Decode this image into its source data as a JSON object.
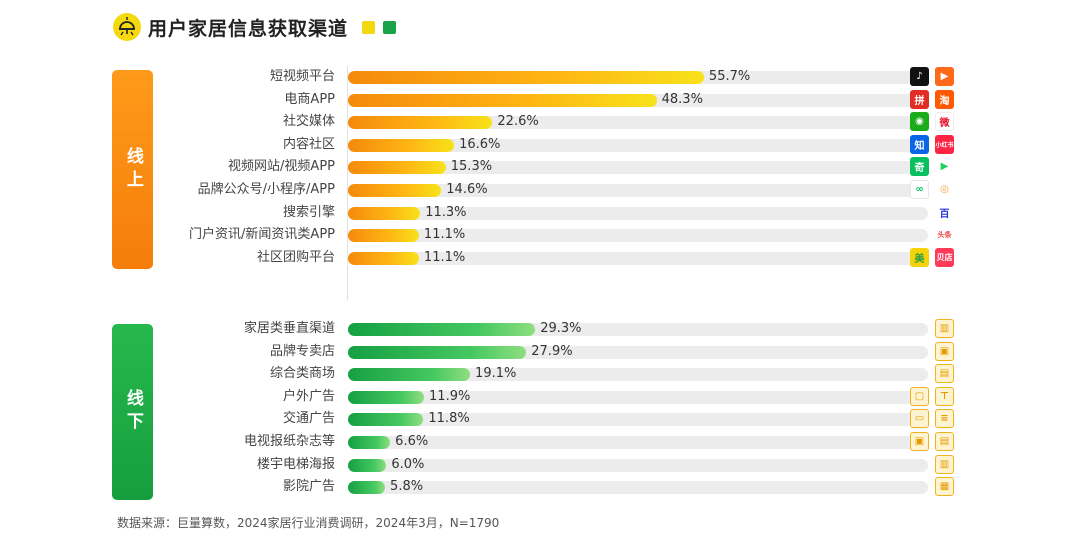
{
  "title": "用户家居信息获取渠道",
  "section_labels": {
    "online": "线上",
    "offline": "线下"
  },
  "footnote": "数据来源：巨量算数，2024家居行业消费调研，2024年3月，N=1790",
  "colors": {
    "online_start": "#f58a0c",
    "online_end": "#f7e21a",
    "offline_start": "#15a043",
    "offline_end": "#8fde7f",
    "track": "#ececec"
  },
  "chart_data": {
    "type": "bar",
    "orientation": "horizontal",
    "title": "用户家居信息获取渠道",
    "xlim": [
      0,
      100
    ],
    "unit": "%",
    "groups": [
      {
        "name": "线上",
        "categories": [
          "短视频平台",
          "电商APP",
          "社交媒体",
          "内容社区",
          "视频网站/视频APP",
          "品牌公众号/小程序/APP",
          "搜索引擎",
          "门户资讯/新闻资讯类APP",
          "社区团购平台"
        ],
        "values": [
          55.7,
          48.3,
          22.6,
          16.6,
          15.3,
          14.6,
          11.3,
          11.1,
          11.1
        ],
        "labels": [
          "55.7%",
          "48.3%",
          "22.6%",
          "16.6%",
          "15.3%",
          "14.6%",
          "11.3%",
          "11.1%",
          "11.1%"
        ],
        "icons": [
          [
            "tiktok-icon",
            "kuaishou-icon"
          ],
          [
            "pinduoduo-icon",
            "taobao-icon"
          ],
          [
            "wechat-icon",
            "weibo-icon"
          ],
          [
            "zhihu-icon",
            "xiaohongshu-icon"
          ],
          [
            "iqiyi-icon",
            "tencent-video-icon"
          ],
          [
            "mini-program-icon",
            "wechat-channels-icon"
          ],
          [
            "baidu-icon"
          ],
          [
            "toutiao-icon"
          ],
          [
            "meituan-icon",
            "beidian-icon"
          ]
        ]
      },
      {
        "name": "线下",
        "categories": [
          "家居类垂直渠道",
          "品牌专卖店",
          "综合类商场",
          "户外广告",
          "交通广告",
          "电视报纸杂志等",
          "楼宇电梯海报",
          "影院广告"
        ],
        "values": [
          29.3,
          27.9,
          19.1,
          11.9,
          11.8,
          6.6,
          6.0,
          5.8
        ],
        "labels": [
          "29.3%",
          "27.9%",
          "19.1%",
          "11.9%",
          "11.8%",
          "6.6%",
          "6.0%",
          "5.8%"
        ],
        "icons": [
          [
            "furniture-store-icon"
          ],
          [
            "brand-store-icon"
          ],
          [
            "shopping-mall-icon"
          ],
          [
            "billboard-icon",
            "outdoor-sign-icon"
          ],
          [
            "bus-icon",
            "subway-icon"
          ],
          [
            "tv-icon",
            "newspaper-icon"
          ],
          [
            "elevator-icon"
          ],
          [
            "cinema-icon"
          ]
        ]
      }
    ]
  }
}
